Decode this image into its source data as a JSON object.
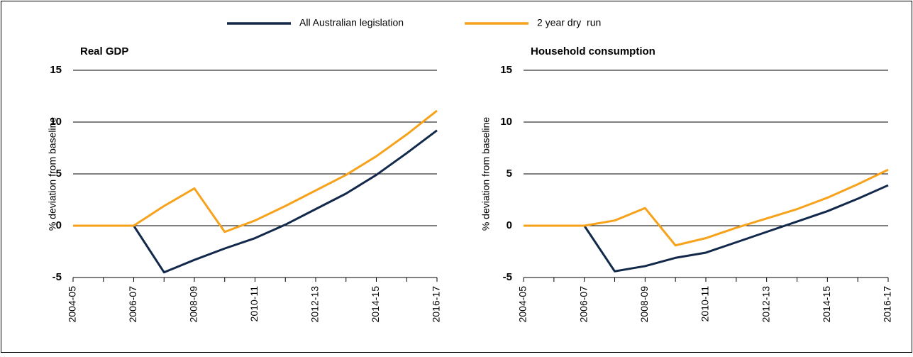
{
  "chart_data": [
    {
      "type": "line",
      "title": "Real GDP",
      "y_label": "% deviation from baseline",
      "categories": [
        "2004-05",
        null,
        "2006-07",
        null,
        "2008-09",
        null,
        "2010-11",
        null,
        "2012-13",
        null,
        "2014-15",
        null,
        "2016-17"
      ],
      "series": [
        {
          "name": "All Australian legislation",
          "color": "#13294b",
          "values": [
            0,
            0,
            0,
            -4.5,
            -3.3,
            -2.2,
            -1.2,
            0.1,
            1.6,
            3.1,
            4.9,
            7.0,
            9.2
          ]
        },
        {
          "name": "2 year dry  run",
          "color": "#f7a21b",
          "values": [
            0,
            0,
            0,
            1.9,
            3.6,
            -0.6,
            0.5,
            1.9,
            3.4,
            4.9,
            6.7,
            8.8,
            11.1
          ]
        }
      ],
      "ylim": [
        -5,
        15
      ],
      "yticks": [
        -5,
        0,
        5,
        10,
        15
      ],
      "grid": true
    },
    {
      "type": "line",
      "title": "Household consumption",
      "y_label": "% deviation from baseline",
      "categories": [
        "2004-05",
        null,
        "2006-07",
        null,
        "2008-09",
        null,
        "2010-11",
        null,
        "2012-13",
        null,
        "2014-15",
        null,
        "2016-17"
      ],
      "series": [
        {
          "name": "All Australian legislation",
          "color": "#13294b",
          "values": [
            0,
            0,
            0,
            -4.4,
            -3.9,
            -3.1,
            -2.6,
            -1.6,
            -0.6,
            0.4,
            1.4,
            2.6,
            3.9
          ]
        },
        {
          "name": "2 year dry  run",
          "color": "#f7a21b",
          "values": [
            0,
            0,
            0,
            0.5,
            1.7,
            -1.9,
            -1.2,
            -0.2,
            0.7,
            1.6,
            2.7,
            4.0,
            5.4
          ]
        }
      ],
      "ylim": [
        -5,
        15
      ],
      "yticks": [
        -5,
        0,
        5,
        10,
        15
      ],
      "grid": true
    }
  ]
}
